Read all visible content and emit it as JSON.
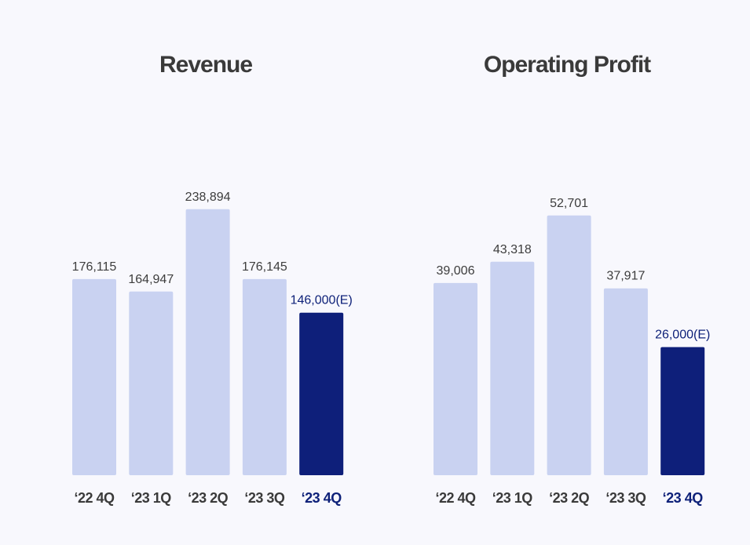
{
  "colors": {
    "background": "#f8f8fd",
    "bar": "#c9d2f1",
    "bar_highlight": "#0e1f7a",
    "text": "#3a3a3a",
    "text_highlight": "#0e2179"
  },
  "chart_data": [
    {
      "type": "bar",
      "title": "Revenue",
      "categories": [
        "‘22 4Q",
        "‘23 1Q",
        "‘23 2Q",
        "‘23 3Q",
        "‘23 4Q"
      ],
      "values": [
        176115,
        164947,
        238894,
        176145,
        146000
      ],
      "value_labels": [
        "176,115",
        "164,947",
        "238,894",
        "176,145",
        "146,000(E)"
      ],
      "highlight_index": 4,
      "ylim": [
        0,
        300000
      ],
      "grid": false,
      "legend": "none"
    },
    {
      "type": "bar",
      "title": "Operating Profit",
      "categories": [
        "‘22 4Q",
        "‘23 1Q",
        "‘23 2Q",
        "‘23 3Q",
        "‘23 4Q"
      ],
      "values": [
        39006,
        43318,
        52701,
        37917,
        26000
      ],
      "value_labels": [
        "39,006",
        "43,318",
        "52,701",
        "37,917",
        "26,000(E)"
      ],
      "highlight_index": 4,
      "ylim": [
        0,
        67000
      ],
      "grid": false,
      "legend": "none"
    }
  ]
}
